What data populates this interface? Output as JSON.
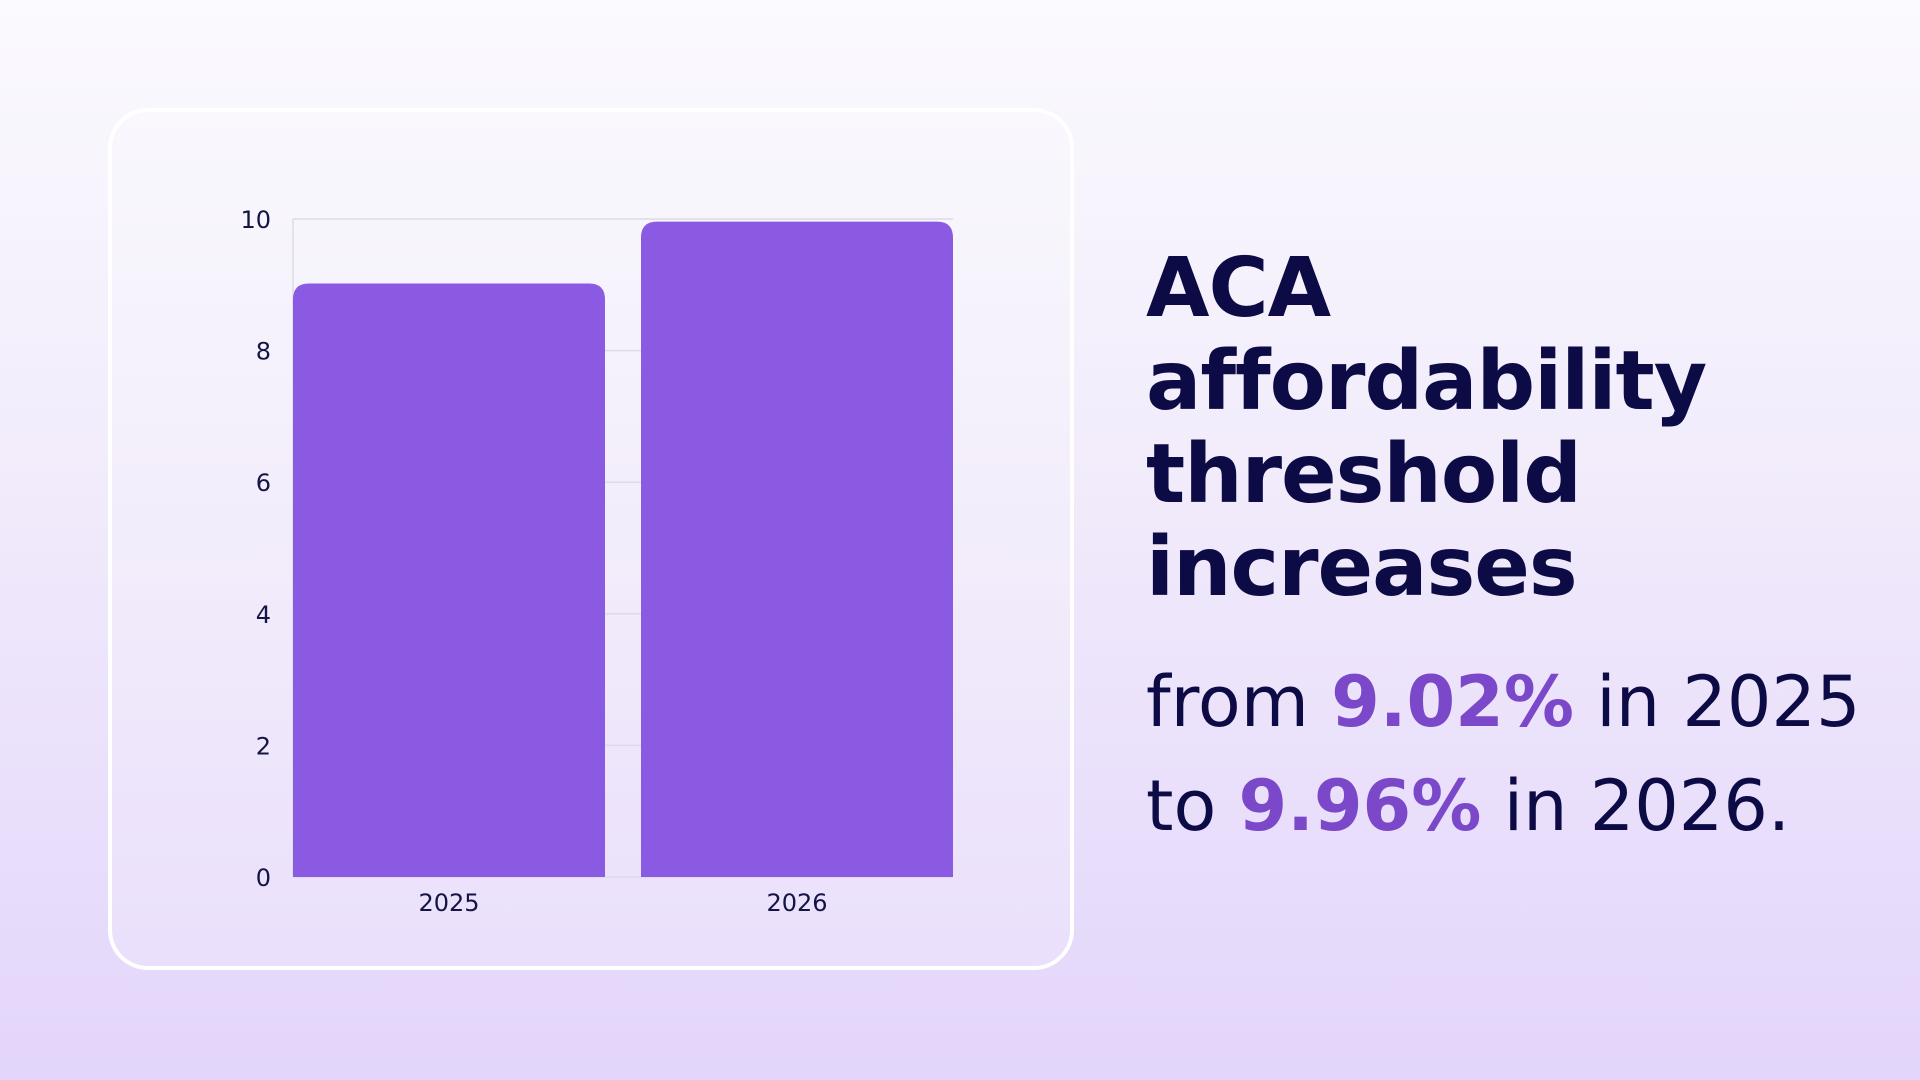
{
  "chart_data": {
    "type": "bar",
    "categories": [
      "2025",
      "2026"
    ],
    "values": [
      9.02,
      9.96
    ],
    "ylim": [
      0,
      10
    ],
    "yticks": [
      0,
      2,
      4,
      6,
      8,
      10
    ],
    "title": "",
    "xlabel": "",
    "ylabel": "",
    "grid": true,
    "bar_color": "#8b5ae2",
    "grid_color": "#dcdbe6"
  },
  "headline": {
    "line1": "ACA",
    "line2": "affordability",
    "line3": "threshold",
    "line4": "increases"
  },
  "subtext": {
    "from_word": "from",
    "value_2025": "9.02%",
    "in_2025": "in 2025",
    "to_word": "to",
    "value_2026": "9.96%",
    "in_2026": "in 2026."
  },
  "colors": {
    "text": "#0d0b45",
    "accent": "#7a48c9"
  }
}
